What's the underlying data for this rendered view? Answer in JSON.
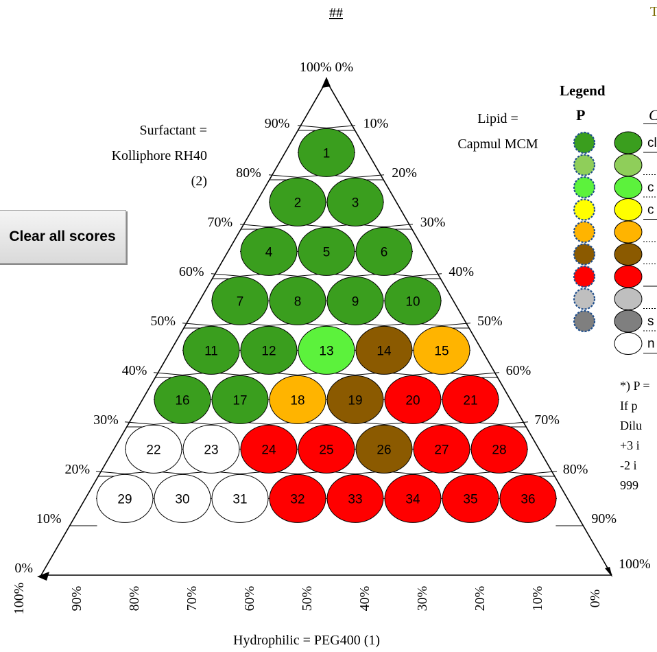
{
  "header": {
    "mark": "##",
    "edge_mark": "T"
  },
  "button": {
    "clear_label": "Clear all scores"
  },
  "labels": {
    "surfactant_line1": "Surfactant =",
    "surfactant_line2": "Kolliphore RH40",
    "surfactant_line3": "(2)",
    "lipid_line1": "Lipid =",
    "lipid_line2": "Capmul MCM",
    "x_title": "Hydrophilic = PEG400 (1)",
    "apex": "100%  0%",
    "right_end": "100%"
  },
  "legend": {
    "title": "Legend",
    "p_header": "P",
    "c_header": "C",
    "colors": [
      "#3a9e1e",
      "#8fce5a",
      "#5cf23c",
      "#ffff00",
      "#ffb400",
      "#8b5a00",
      "#ff0000",
      "#bfbfbf",
      "#7f7f7f",
      "#ffffff"
    ],
    "right_texts": [
      "cl",
      "",
      "c",
      "c",
      "",
      "",
      "",
      "",
      "s",
      "n"
    ],
    "p_count": 9
  },
  "footnote": {
    "lines": [
      "*) P =",
      "If p",
      "Dilu",
      "+3 i",
      "-2 i",
      "999"
    ]
  },
  "chart_data": {
    "type": "ternary",
    "axes": {
      "left_edge_ticks": [
        "0%",
        "10%",
        "20%",
        "30%",
        "40%",
        "50%",
        "60%",
        "70%",
        "80%",
        "90%"
      ],
      "right_edge_ticks": [
        "10%",
        "20%",
        "30%",
        "40%",
        "50%",
        "60%",
        "70%",
        "80%",
        "90%"
      ],
      "bottom_ticks": [
        "100%",
        "90%",
        "80%",
        "70%",
        "60%",
        "50%",
        "40%",
        "30%",
        "20%",
        "10%",
        "0%"
      ]
    },
    "rows": [
      [
        1
      ],
      [
        2,
        3
      ],
      [
        4,
        5,
        6
      ],
      [
        7,
        8,
        9,
        10
      ],
      [
        11,
        12,
        13,
        14,
        15
      ],
      [
        16,
        17,
        18,
        19,
        20,
        21
      ],
      [
        22,
        23,
        24,
        25,
        26,
        27,
        28
      ],
      [
        29,
        30,
        31,
        32,
        33,
        34,
        35,
        36
      ]
    ],
    "scores": {
      "1": "green",
      "2": "green",
      "3": "green",
      "4": "green",
      "5": "green",
      "6": "green",
      "7": "green",
      "8": "green",
      "9": "green",
      "10": "green",
      "11": "green",
      "12": "green",
      "13": "lightgreen",
      "14": "brown",
      "15": "orange",
      "16": "green",
      "17": "green",
      "18": "orange",
      "19": "brown",
      "20": "red",
      "21": "red",
      "22": "white",
      "23": "white",
      "24": "red",
      "25": "red",
      "26": "brown",
      "27": "red",
      "28": "red",
      "29": "white",
      "30": "white",
      "31": "white",
      "32": "red",
      "33": "red",
      "34": "red",
      "35": "red",
      "36": "red"
    },
    "palette": {
      "green": "#3a9e1e",
      "lightgreen": "#5cf23c",
      "orange": "#ffb400",
      "brown": "#8b5a00",
      "red": "#ff0000",
      "white": "#ffffff"
    }
  }
}
